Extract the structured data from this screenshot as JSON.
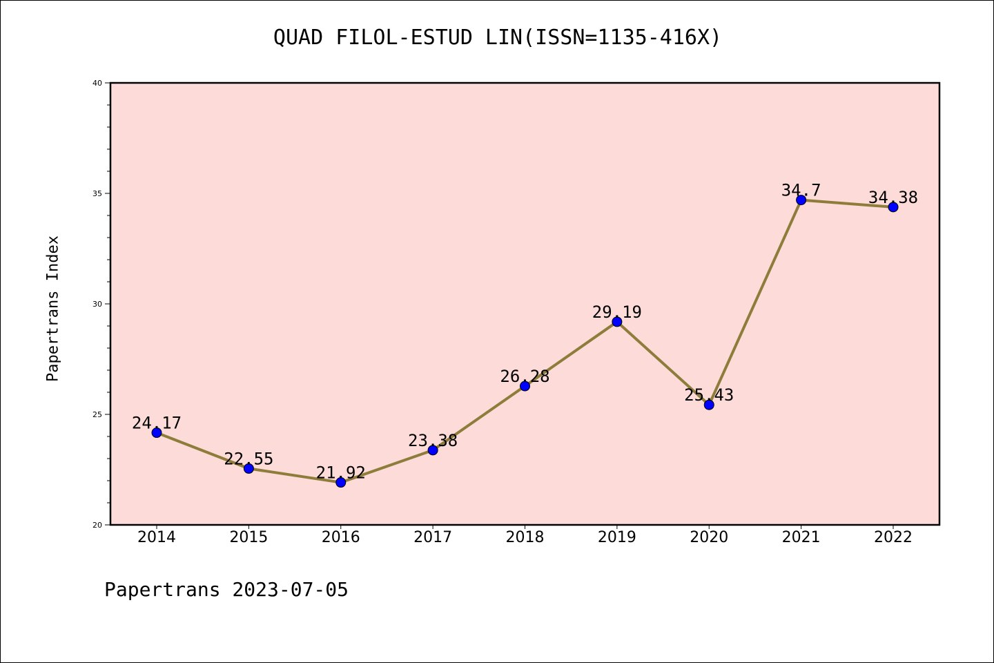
{
  "chart_data": {
    "type": "line",
    "title": "QUAD FILOL-ESTUD LIN(ISSN=1135-416X)",
    "xlabel": "",
    "ylabel": "Papertrans Index",
    "categories": [
      "2014",
      "2015",
      "2016",
      "2017",
      "2018",
      "2019",
      "2020",
      "2021",
      "2022"
    ],
    "series": [
      {
        "values": [
          24.17,
          22.55,
          21.92,
          23.38,
          26.28,
          29.19,
          25.43,
          34.7,
          34.38
        ],
        "labels": [
          "24.17",
          "22.55",
          "21.92",
          "23.38",
          "26.28",
          "29.19",
          "25.43",
          "34.7",
          "34.38"
        ]
      }
    ],
    "ylim": [
      20,
      40
    ],
    "yticks": [
      "20",
      "25",
      "30",
      "35",
      "40"
    ],
    "grid": false,
    "colors": {
      "plot_background": "#fddbd9",
      "line": "#8e7d3a",
      "marker": "#0000ff"
    }
  },
  "footer": "Papertrans 2023-07-05"
}
